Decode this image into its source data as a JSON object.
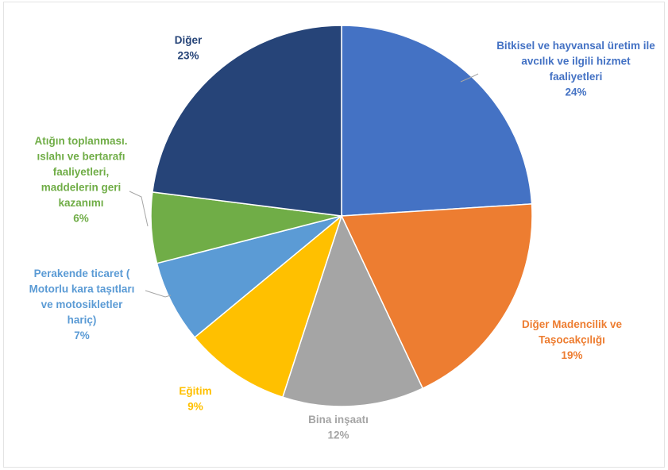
{
  "chart_data": {
    "type": "pie",
    "title": "",
    "slices": [
      {
        "label": [
          "Bitkisel ve hayvansal üretim ile",
          "avcılık ve ilgili hizmet",
          "faaliyetleri"
        ],
        "value_label": "24%",
        "value": 24,
        "color": "#4472C4"
      },
      {
        "label": [
          "Diğer Madencilik ve",
          "Taşocakçılığı"
        ],
        "value_label": "19%",
        "value": 19,
        "color": "#ED7D31"
      },
      {
        "label": [
          "Bina inşaatı"
        ],
        "value_label": "12%",
        "value": 12,
        "color": "#A5A5A5"
      },
      {
        "label": [
          "Eğitim"
        ],
        "value_label": "9%",
        "value": 9,
        "color": "#FFC000"
      },
      {
        "label": [
          "Perakende ticaret (",
          "Motorlu kara taşıtları",
          "ve motosikletler",
          "hariç)"
        ],
        "value_label": "7%",
        "value": 7,
        "color": "#5B9BD5"
      },
      {
        "label": [
          "Atığın toplanması.",
          "ıslahı ve bertarafı",
          "faaliyetleri,",
          "maddelerin geri",
          "kazanımı"
        ],
        "value_label": "6%",
        "value": 6,
        "color": "#70AD47"
      },
      {
        "label": [
          "Diğer"
        ],
        "value_label": "23%",
        "value": 23,
        "color": "#264478"
      }
    ]
  }
}
